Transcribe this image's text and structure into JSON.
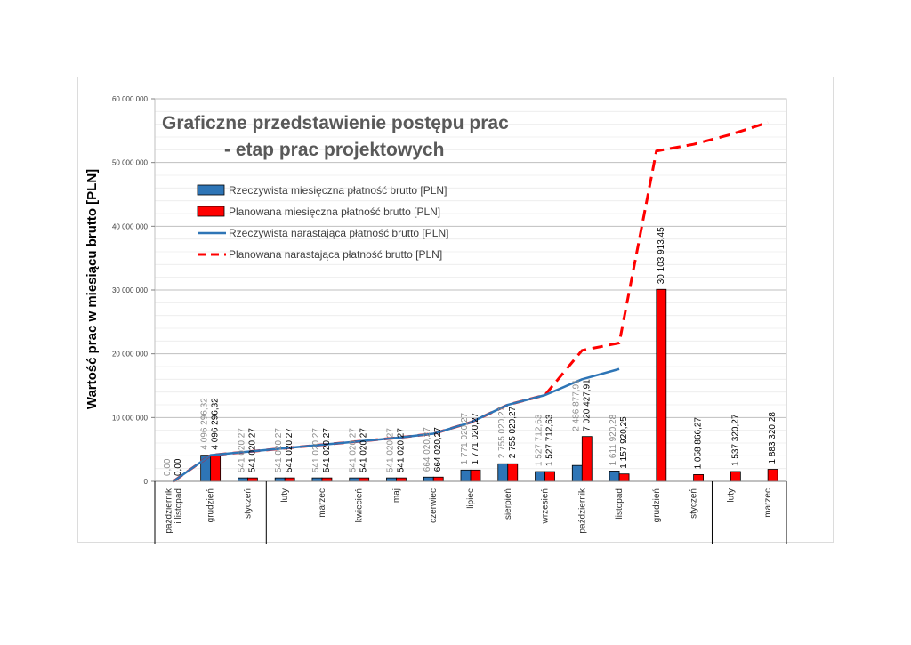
{
  "chart_data": {
    "type": "bar",
    "title": "Graficzne przedstawienie postępu prac",
    "subtitle": "- etap prac projektowych",
    "ylabel": "Wartość prac w miesiącu brutto [PLN]",
    "xlabel": "",
    "ylim": [
      0,
      60000000
    ],
    "yticks": [
      0,
      10000000,
      20000000,
      30000000,
      40000000,
      50000000,
      60000000
    ],
    "ytick_labels": [
      "0",
      "10 000 000",
      "20 000 000",
      "30 000 000",
      "40 000 000",
      "50 000 000",
      "60 000 000"
    ],
    "categories": [
      "październik i listopad",
      "grudzień",
      "styczeń",
      "luty",
      "marzec",
      "kwiecień",
      "maj",
      "czerwiec",
      "lipiec",
      "sierpień",
      "wrzesień",
      "październik",
      "listopad",
      "grudzień",
      "styczeń",
      "luty",
      "marzec"
    ],
    "category_lines": [
      [
        "październik",
        "i listopad"
      ],
      [
        "grudzień"
      ],
      [
        "styczeń"
      ],
      [
        "luty"
      ],
      [
        "marzec"
      ],
      [
        "kwiecień"
      ],
      [
        "maj"
      ],
      [
        "czerwiec"
      ],
      [
        "lipiec"
      ],
      [
        "sierpień"
      ],
      [
        "wrzesień"
      ],
      [
        "październik"
      ],
      [
        "listopad"
      ],
      [
        "grudzień"
      ],
      [
        "styczeń"
      ],
      [
        "luty"
      ],
      [
        "marzec"
      ]
    ],
    "series": [
      {
        "name": "Rzeczywista miesięczna płatność brutto [PLN]",
        "kind": "bar",
        "color": "#2e75b6",
        "values": [
          0,
          4096296.32,
          541020.27,
          541020.27,
          541020.27,
          541020.27,
          541020.27,
          664020.27,
          1771020.27,
          2755020.27,
          1527712.63,
          2486877.91,
          1611920.28,
          null,
          null,
          null,
          null
        ],
        "labels": [
          "0,00",
          "4 096 296,32",
          "541 020,27",
          "541 020,27",
          "541 020,27",
          "541 020,27",
          "541 020,27",
          "664 020,27",
          "1 771 020,27",
          "2 755 020,27",
          "1 527 712,63",
          "2 486 877,91",
          "1 611 920,28",
          "",
          "",
          "",
          ""
        ]
      },
      {
        "name": "Planowana miesięczna płatność brutto [PLN]",
        "kind": "bar",
        "color": "#ff0000",
        "values": [
          0,
          4096296.32,
          541020.27,
          541020.27,
          541020.27,
          541020.27,
          541020.27,
          664020.27,
          1771020.27,
          2755020.27,
          1527712.63,
          7020427.91,
          1157920.25,
          30103913.45,
          1058866.27,
          1537320.27,
          1883320.28
        ],
        "labels": [
          "0,00",
          "4 096 296,32",
          "541 020,27",
          "541 020,27",
          "541 020,27",
          "541 020,27",
          "541 020,27",
          "664 020,27",
          "1 771 020,27",
          "2 755 020,27",
          "1 527 712,63",
          "7 020 427,91",
          "1 157 920,25",
          "30 103 913,45",
          "1 058 866,27",
          "1 537 320,27",
          "1 883 320,28"
        ]
      },
      {
        "name": "Rzeczywista narastająca płatność brutto [PLN]",
        "kind": "line",
        "color": "#2e75b6",
        "values": [
          0,
          4096296.32,
          4637316.59,
          5178336.86,
          5719357.13,
          6260377.4,
          6801397.67,
          7465417.94,
          9236438.21,
          11991458.48,
          13519171.11,
          16006049.02,
          17617969.3,
          null,
          null,
          null,
          null
        ]
      },
      {
        "name": "Planowana narastająca płatność brutto [PLN]",
        "kind": "line-dashed",
        "color": "#ff0000",
        "values": [
          0,
          4096296.32,
          4637316.59,
          5178336.86,
          5719357.13,
          6260377.4,
          6801397.67,
          7465417.94,
          9236438.21,
          11991458.48,
          13519171.11,
          20539599.02,
          21697519.27,
          51801432.72,
          52860298.99,
          54397619.26,
          56280939.54
        ]
      }
    ],
    "legend": "top-left"
  }
}
